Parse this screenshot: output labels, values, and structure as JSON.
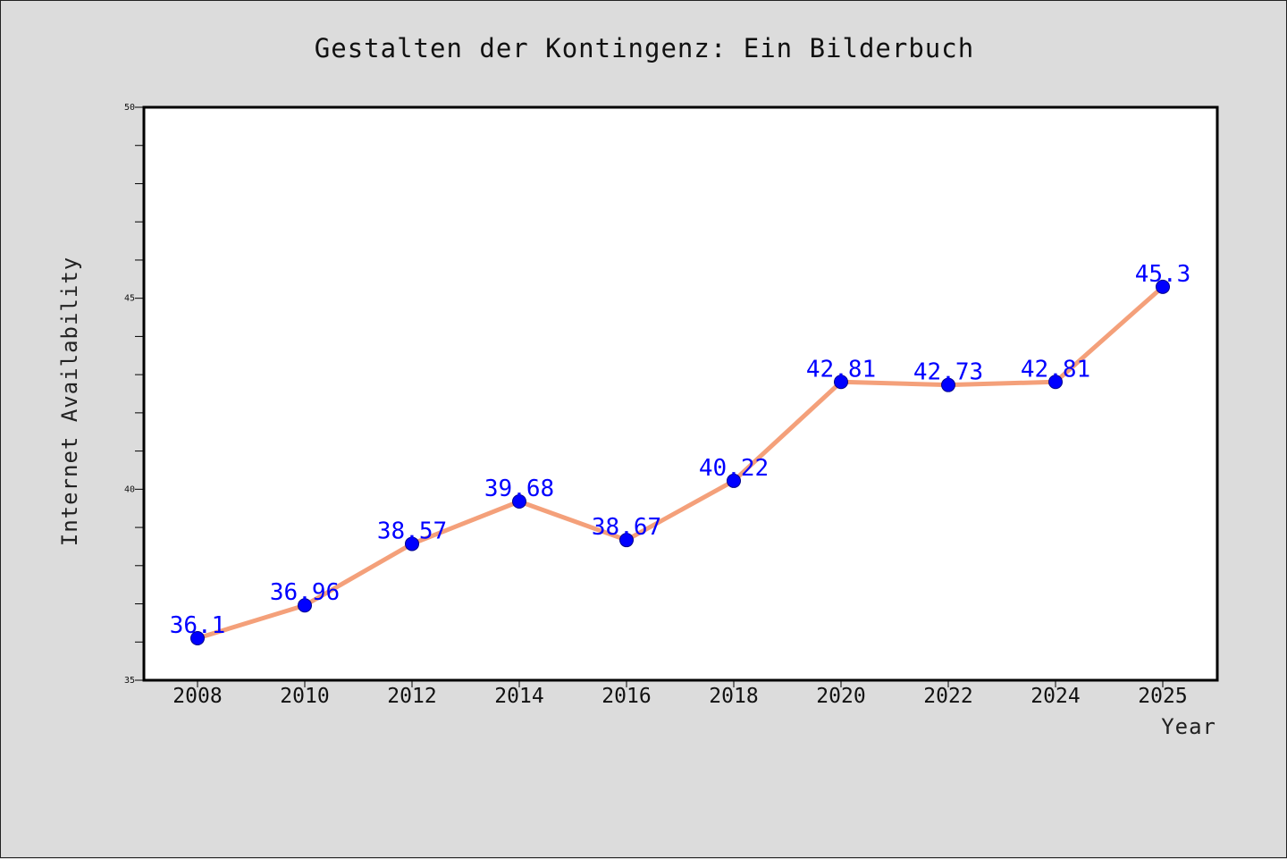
{
  "chart_data": {
    "type": "line",
    "title": "Gestalten der Kontingenz: Ein Bilderbuch",
    "xlabel": "Year",
    "ylabel": "Internet Availability",
    "categories": [
      "2008",
      "2010",
      "2012",
      "2014",
      "2016",
      "2018",
      "2020",
      "2022",
      "2024",
      "2025"
    ],
    "series": [
      {
        "values": [
          36.1,
          36.96,
          38.57,
          39.68,
          38.67,
          40.22,
          42.81,
          42.73,
          42.81,
          45.3
        ],
        "labels": [
          "36.1",
          "36.96",
          "38.57",
          "39.68",
          "38.67",
          "40.22",
          "42.81",
          "42.73",
          "42.81",
          "45.3"
        ]
      }
    ],
    "ylim": [
      35,
      50
    ],
    "yticks": [
      "35",
      "40",
      "45",
      "50"
    ],
    "grid": false,
    "colors": {
      "line": "#f4a07a",
      "marker": "#0000ff",
      "data_label": "#0000ff",
      "background": "#dcdcdc",
      "plot_background": "#ffffff"
    }
  }
}
